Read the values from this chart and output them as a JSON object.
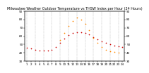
{
  "title": "Milwaukee Weather Outdoor Temperature vs THSW Index per Hour (24 Hours)",
  "hours": [
    1,
    2,
    3,
    4,
    5,
    6,
    7,
    8,
    9,
    10,
    11,
    12,
    13,
    14,
    15,
    16,
    17,
    18,
    19,
    20,
    21,
    22,
    23,
    24
  ],
  "temp": [
    46,
    45,
    44,
    43,
    43,
    43,
    44,
    47,
    52,
    57,
    61,
    64,
    65,
    65,
    64,
    62,
    59,
    56,
    54,
    52,
    50,
    49,
    48,
    47
  ],
  "thsw": [
    null,
    null,
    null,
    null,
    null,
    null,
    null,
    null,
    55,
    64,
    72,
    78,
    82,
    80,
    75,
    67,
    58,
    52,
    47,
    44,
    42,
    41,
    40,
    null
  ],
  "temp_color": "#cc0000",
  "thsw_color": "#ff8800",
  "bg_color": "#ffffff",
  "grid_color": "#999999",
  "ylim_min": 30,
  "ylim_max": 90,
  "ytick_left": [
    30,
    40,
    50,
    60,
    70,
    80,
    90
  ],
  "ytick_right": [
    30,
    40,
    50,
    60,
    70,
    80,
    90
  ],
  "grid_x": [
    1,
    3,
    5,
    7,
    9,
    11,
    13,
    15,
    17,
    19,
    21,
    23
  ],
  "marker_size": 1.5,
  "title_fontsize": 3.5,
  "tick_fontsize": 3.0
}
